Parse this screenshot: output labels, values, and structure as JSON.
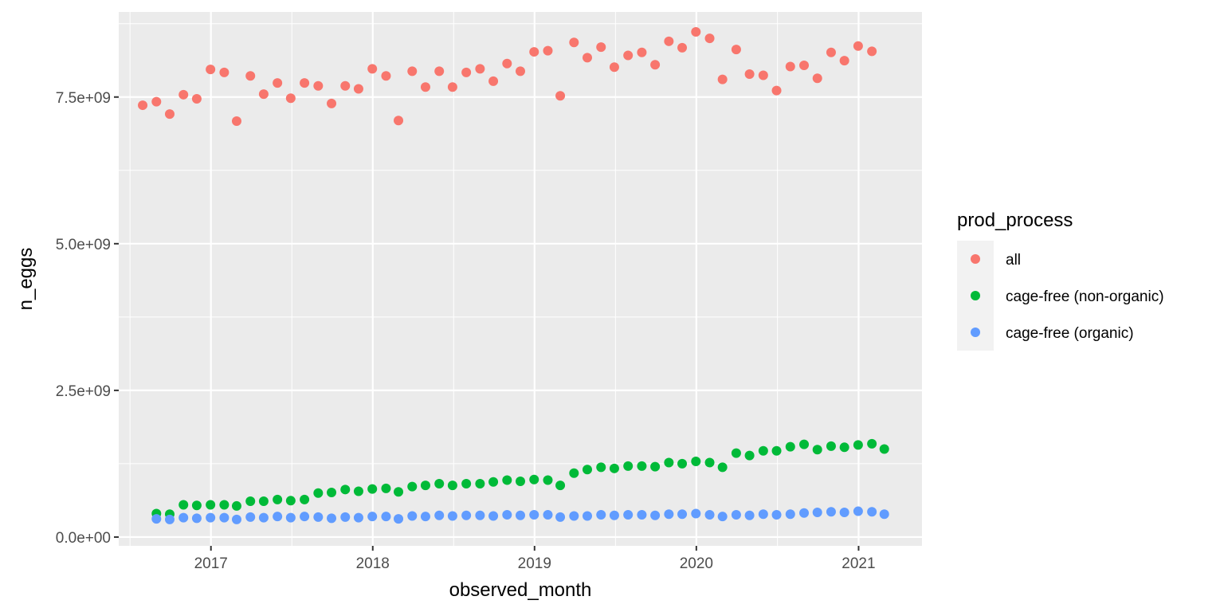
{
  "chart_data": {
    "type": "scatter",
    "title": "",
    "xlabel": "observed_month",
    "ylabel": "n_eggs",
    "x_axis": {
      "kind": "date",
      "range": [
        "2016-06-07",
        "2021-05-24"
      ],
      "ticks": [
        {
          "value": "2017-01-01",
          "label": "2017"
        },
        {
          "value": "2018-01-01",
          "label": "2018"
        },
        {
          "value": "2019-01-01",
          "label": "2019"
        },
        {
          "value": "2020-01-01",
          "label": "2020"
        },
        {
          "value": "2021-01-01",
          "label": "2021"
        }
      ]
    },
    "y_axis": {
      "range": [
        -150000000,
        8950000000
      ],
      "ticks": [
        {
          "value": 0,
          "label": "0.0e+00"
        },
        {
          "value": 2500000000,
          "label": "2.5e+09"
        },
        {
          "value": 5000000000,
          "label": "5.0e+09"
        },
        {
          "value": 7500000000,
          "label": "7.5e+09"
        }
      ]
    },
    "grid": true,
    "legend": {
      "title": "prod_process",
      "position": "right"
    },
    "x": [
      "2016-07-31",
      "2016-08-31",
      "2016-09-30",
      "2016-10-31",
      "2016-11-30",
      "2016-12-31",
      "2017-01-31",
      "2017-02-28",
      "2017-03-31",
      "2017-04-30",
      "2017-05-31",
      "2017-06-30",
      "2017-07-31",
      "2017-08-31",
      "2017-09-30",
      "2017-10-31",
      "2017-11-30",
      "2017-12-31",
      "2018-01-31",
      "2018-02-28",
      "2018-03-31",
      "2018-04-30",
      "2018-05-31",
      "2018-06-30",
      "2018-07-31",
      "2018-08-31",
      "2018-09-30",
      "2018-10-31",
      "2018-11-30",
      "2018-12-31",
      "2019-01-31",
      "2019-02-28",
      "2019-03-31",
      "2019-04-30",
      "2019-05-31",
      "2019-06-30",
      "2019-07-31",
      "2019-08-31",
      "2019-09-30",
      "2019-10-31",
      "2019-11-30",
      "2019-12-31",
      "2020-01-31",
      "2020-02-29",
      "2020-03-31",
      "2020-04-30",
      "2020-05-31",
      "2020-06-30",
      "2020-07-31",
      "2020-08-31",
      "2020-09-30",
      "2020-10-31",
      "2020-11-30",
      "2020-12-31",
      "2021-01-31",
      "2021-02-28"
    ],
    "series": [
      {
        "name": "all",
        "color": "#F8766D",
        "values": [
          7360000000,
          7420000000,
          7210000000,
          7540000000,
          7470000000,
          7970000000,
          7920000000,
          7090000000,
          7860000000,
          7550000000,
          7740000000,
          7480000000,
          7740000000,
          7690000000,
          7390000000,
          7690000000,
          7640000000,
          7980000000,
          7860000000,
          7100000000,
          7940000000,
          7670000000,
          7940000000,
          7670000000,
          7920000000,
          7980000000,
          7770000000,
          8070000000,
          7940000000,
          8270000000,
          8290000000,
          7520000000,
          8430000000,
          8170000000,
          8350000000,
          8010000000,
          8210000000,
          8260000000,
          8050000000,
          8450000000,
          8340000000,
          8610000000,
          8500000000,
          7800000000,
          8310000000,
          7890000000,
          7870000000,
          7610000000,
          8020000000,
          8040000000,
          7820000000,
          8260000000,
          8120000000,
          8370000000,
          8280000000,
          null
        ]
      },
      {
        "name": "cage-free (non-organic)",
        "color": "#00BA38",
        "values": [
          null,
          400000000,
          390000000,
          550000000,
          540000000,
          550000000,
          550000000,
          530000000,
          610000000,
          610000000,
          640000000,
          620000000,
          640000000,
          750000000,
          760000000,
          810000000,
          780000000,
          820000000,
          830000000,
          770000000,
          860000000,
          880000000,
          910000000,
          880000000,
          910000000,
          910000000,
          940000000,
          970000000,
          950000000,
          980000000,
          970000000,
          880000000,
          1090000000,
          1150000000,
          1190000000,
          1170000000,
          1210000000,
          1210000000,
          1200000000,
          1270000000,
          1250000000,
          1290000000,
          1270000000,
          1190000000,
          1430000000,
          1390000000,
          1470000000,
          1470000000,
          1540000000,
          1580000000,
          1490000000,
          1550000000,
          1530000000,
          1570000000,
          1590000000,
          1500000000
        ]
      },
      {
        "name": "cage-free (organic)",
        "color": "#619CFF",
        "values": [
          null,
          310000000,
          300000000,
          330000000,
          320000000,
          330000000,
          330000000,
          300000000,
          340000000,
          330000000,
          350000000,
          330000000,
          350000000,
          340000000,
          320000000,
          340000000,
          330000000,
          350000000,
          350000000,
          310000000,
          360000000,
          350000000,
          370000000,
          360000000,
          370000000,
          370000000,
          360000000,
          380000000,
          370000000,
          380000000,
          380000000,
          340000000,
          360000000,
          360000000,
          380000000,
          370000000,
          380000000,
          380000000,
          370000000,
          390000000,
          390000000,
          400000000,
          380000000,
          350000000,
          380000000,
          370000000,
          390000000,
          380000000,
          390000000,
          410000000,
          420000000,
          430000000,
          420000000,
          440000000,
          430000000,
          390000000
        ]
      }
    ]
  }
}
